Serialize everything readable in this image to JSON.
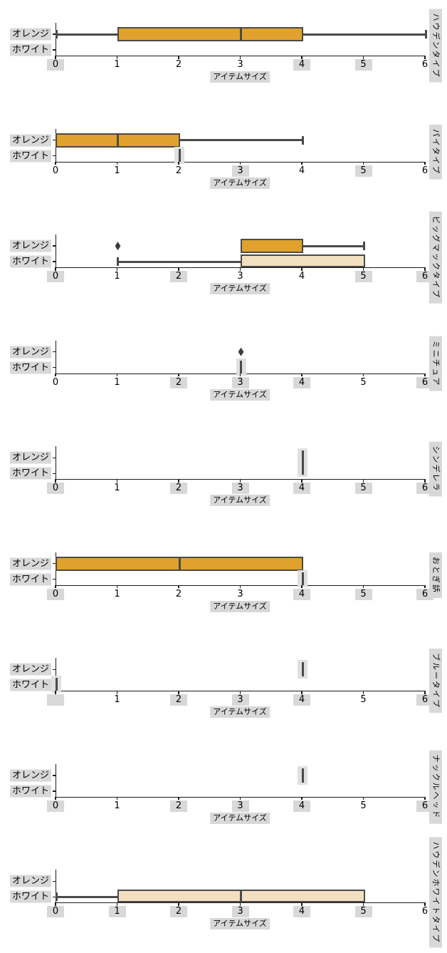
{
  "figure": {
    "xlabel": "アイテムサイズ",
    "categories": [
      "オレンジ",
      "ホワイト"
    ],
    "x_ticks": [
      "0",
      "1",
      "2",
      "3",
      "4",
      "5",
      "6"
    ],
    "x_range": [
      0,
      6
    ],
    "colors": {
      "orange_box": "#e0a22c",
      "white_box": "#f1dfc0",
      "box_border": "#4a4a4a",
      "axis": "#1a1a1a",
      "label_highlight": "#d8d8d8",
      "flier": "#3d3d3d"
    }
  },
  "chart_data": [
    {
      "type": "box",
      "orientation": "horizontal",
      "title": "ハウデンタイプ",
      "xlabel": "アイテムサイズ",
      "xlim": [
        0,
        6
      ],
      "categories": [
        "オレンジ",
        "ホワイト"
      ],
      "series": [
        {
          "name": "オレンジ",
          "q1": 1,
          "median": 3,
          "q3": 4,
          "whisker_low": 0,
          "whisker_high": 6,
          "caps": [
            0,
            6
          ],
          "fliers": [],
          "single_value": null
        },
        {
          "name": "ホワイト",
          "q1": null,
          "median": null,
          "q3": null,
          "whisker_low": null,
          "whisker_high": null,
          "caps": [],
          "fliers": [],
          "single_value": null
        }
      ],
      "highlighted_ticks": [
        0,
        4,
        5
      ],
      "hidden_ticks": []
    },
    {
      "type": "box",
      "orientation": "horizontal",
      "title": "パイタイプ",
      "xlabel": "アイテムサイズ",
      "xlim": [
        0,
        6
      ],
      "categories": [
        "オレンジ",
        "ホワイト"
      ],
      "series": [
        {
          "name": "オレンジ",
          "q1": 0,
          "median": 1,
          "q3": 2,
          "whisker_low": 0,
          "whisker_high": 4,
          "caps": [
            4
          ],
          "fliers": [],
          "single_value": null
        },
        {
          "name": "ホワイト",
          "q1": null,
          "median": null,
          "q3": null,
          "whisker_low": null,
          "whisker_high": null,
          "caps": [],
          "fliers": [],
          "single_value": 2
        }
      ],
      "highlighted_ticks": [
        3,
        5
      ],
      "hidden_ticks": []
    },
    {
      "type": "box",
      "orientation": "horizontal",
      "title": "ビッグマックタイプ",
      "xlabel": "アイテムサイズ",
      "xlim": [
        0,
        6
      ],
      "categories": [
        "オレンジ",
        "ホワイト"
      ],
      "series": [
        {
          "name": "オレンジ",
          "q1": 3,
          "median": null,
          "q3": 4,
          "whisker_low": 3,
          "whisker_high": 5,
          "caps": [
            5
          ],
          "fliers": [
            1
          ],
          "single_value": null
        },
        {
          "name": "ホワイト",
          "q1": 3,
          "median": null,
          "q3": 5,
          "whisker_low": 1,
          "whisker_high": 5,
          "caps": [
            1
          ],
          "fliers": [],
          "single_value": null
        }
      ],
      "highlighted_ticks": [
        0,
        2,
        5,
        6
      ],
      "hidden_ticks": []
    },
    {
      "type": "box",
      "orientation": "horizontal",
      "title": "ミニチュア",
      "xlabel": "アイテムサイズ",
      "xlim": [
        0,
        6
      ],
      "categories": [
        "オレンジ",
        "ホワイト"
      ],
      "series": [
        {
          "name": "オレンジ",
          "q1": null,
          "median": null,
          "q3": null,
          "whisker_low": null,
          "whisker_high": null,
          "caps": [],
          "fliers": [
            3
          ],
          "single_value": null
        },
        {
          "name": "ホワイト",
          "q1": null,
          "median": null,
          "q3": null,
          "whisker_low": null,
          "whisker_high": null,
          "caps": [],
          "fliers": [],
          "single_value": 3
        }
      ],
      "highlighted_ticks": [
        2,
        3,
        4,
        6
      ],
      "hidden_ticks": []
    },
    {
      "type": "box",
      "orientation": "horizontal",
      "title": "シンデレラ",
      "xlabel": "アイテムサイズ",
      "xlim": [
        0,
        6
      ],
      "categories": [
        "オレンジ",
        "ホワイト"
      ],
      "series": [
        {
          "name": "オレンジ",
          "q1": null,
          "median": null,
          "q3": null,
          "whisker_low": null,
          "whisker_high": null,
          "caps": [],
          "fliers": [],
          "single_value": 4,
          "single_span": "full"
        },
        {
          "name": "ホワイト",
          "q1": null,
          "median": null,
          "q3": null,
          "whisker_low": null,
          "whisker_high": null,
          "caps": [],
          "fliers": [],
          "single_value": null
        }
      ],
      "highlighted_ticks": [
        0,
        2,
        3,
        4,
        5,
        6
      ],
      "hidden_ticks": []
    },
    {
      "type": "box",
      "orientation": "horizontal",
      "title": "おとぎ話",
      "xlabel": "アイテムサイズ",
      "xlim": [
        0,
        6
      ],
      "categories": [
        "オレンジ",
        "ホワイト"
      ],
      "series": [
        {
          "name": "オレンジ",
          "q1": 0,
          "median": 2,
          "q3": 4,
          "whisker_low": 0,
          "whisker_high": 4,
          "caps": [],
          "fliers": [],
          "single_value": null
        },
        {
          "name": "ホワイト",
          "q1": null,
          "median": null,
          "q3": null,
          "whisker_low": null,
          "whisker_high": null,
          "caps": [],
          "fliers": [],
          "single_value": 4
        }
      ],
      "highlighted_ticks": [
        0,
        4,
        5,
        6
      ],
      "hidden_ticks": []
    },
    {
      "type": "box",
      "orientation": "horizontal",
      "title": "ブルータイプ",
      "xlabel": "アイテムサイズ",
      "xlim": [
        0,
        6
      ],
      "categories": [
        "オレンジ",
        "ホワイト"
      ],
      "series": [
        {
          "name": "オレンジ",
          "q1": null,
          "median": null,
          "q3": null,
          "whisker_low": null,
          "whisker_high": null,
          "caps": [],
          "fliers": [],
          "single_value": 4
        },
        {
          "name": "ホワイト",
          "q1": null,
          "median": null,
          "q3": null,
          "whisker_low": null,
          "whisker_high": null,
          "caps": [],
          "fliers": [],
          "single_value": 0
        }
      ],
      "highlighted_ticks": [
        0,
        2,
        3,
        4,
        6
      ],
      "hidden_ticks": [
        0
      ]
    },
    {
      "type": "box",
      "orientation": "horizontal",
      "title": "ナックルヘッド",
      "xlabel": "アイテムサイズ",
      "xlim": [
        0,
        6
      ],
      "categories": [
        "オレンジ",
        "ホワイト"
      ],
      "series": [
        {
          "name": "オレンジ",
          "q1": null,
          "median": null,
          "q3": null,
          "whisker_low": null,
          "whisker_high": null,
          "caps": [],
          "fliers": [],
          "single_value": 4
        },
        {
          "name": "ホワイト",
          "q1": null,
          "median": null,
          "q3": null,
          "whisker_low": null,
          "whisker_high": null,
          "caps": [],
          "fliers": [],
          "single_value": null
        }
      ],
      "highlighted_ticks": [
        0,
        2,
        3,
        4,
        6
      ],
      "hidden_ticks": []
    },
    {
      "type": "box",
      "orientation": "horizontal",
      "title": "ハウデンホワイトタイプ",
      "xlabel": "アイテムサイズ",
      "xlim": [
        0,
        6
      ],
      "categories": [
        "オレンジ",
        "ホワイト"
      ],
      "series": [
        {
          "name": "オレンジ",
          "q1": null,
          "median": null,
          "q3": null,
          "whisker_low": null,
          "whisker_high": null,
          "caps": [],
          "fliers": [],
          "single_value": null
        },
        {
          "name": "ホワイト",
          "q1": 1,
          "median": 3,
          "q3": 5,
          "whisker_low": 0,
          "whisker_high": 5,
          "caps": [
            0
          ],
          "fliers": [],
          "single_value": null
        }
      ],
      "highlighted_ticks": [
        0,
        1,
        2,
        3,
        4,
        5
      ],
      "hidden_ticks": []
    }
  ]
}
